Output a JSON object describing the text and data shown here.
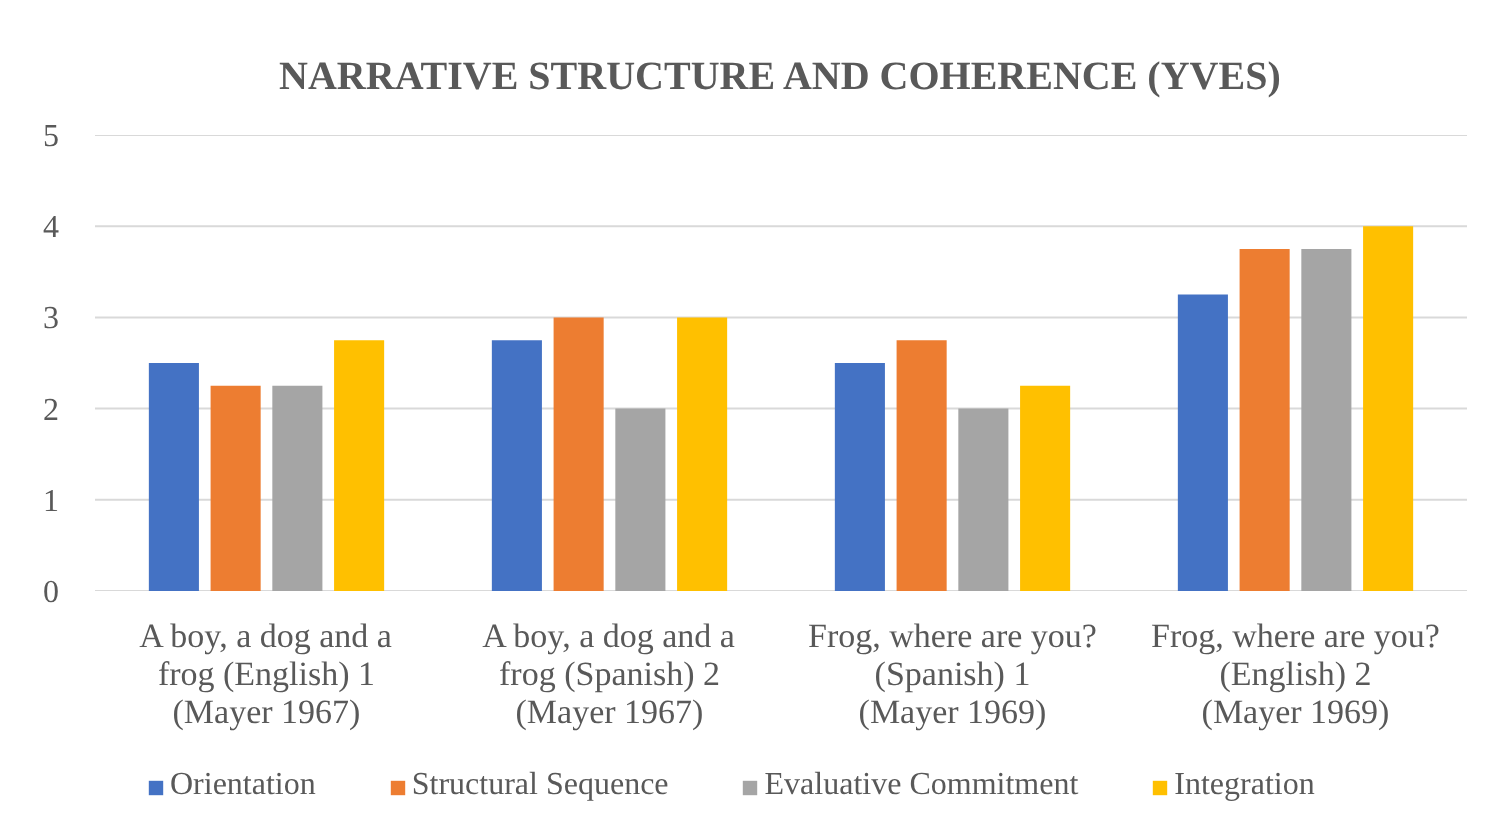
{
  "chart_data": {
    "type": "bar",
    "title": "NARRATIVE STRUCTURE AND COHERENCE (YVES)",
    "categories": [
      "A boy, a dog and a frog (English) 1 (Mayer 1967)",
      "A boy, a dog and a frog (Spanish) 2 (Mayer 1967)",
      "Frog, where are you? (Spanish) 1 (Mayer 1969)",
      "Frog, where are you? (English) 2 (Mayer 1969)"
    ],
    "series": [
      {
        "name": "Orientation",
        "color": "#4472c4",
        "values": [
          2.5,
          2.75,
          2.5,
          3.25
        ]
      },
      {
        "name": "Structural Sequence",
        "color": "#ed7d31",
        "values": [
          2.25,
          3,
          2.75,
          3.75
        ]
      },
      {
        "name": "Evaluative Commitment",
        "color": "#a5a5a5",
        "values": [
          2.25,
          2,
          2,
          3.75
        ]
      },
      {
        "name": "Integration",
        "color": "#ffc000",
        "values": [
          2.75,
          3,
          2.25,
          4
        ]
      }
    ],
    "ylim": [
      0,
      5
    ],
    "yticks": [
      0,
      1,
      2,
      3,
      4,
      5
    ],
    "grid": "y",
    "legend": "bottom"
  }
}
